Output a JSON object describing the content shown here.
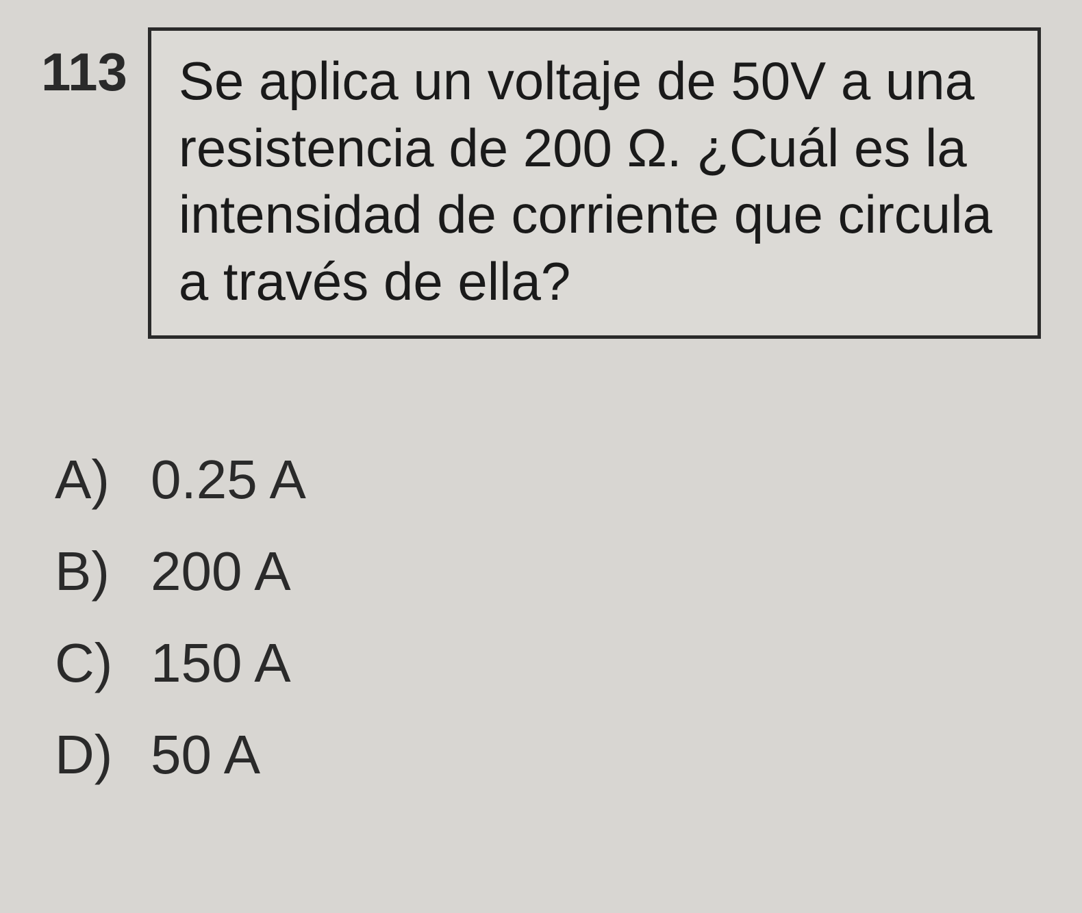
{
  "question": {
    "number": "113",
    "text": "Se aplica un voltaje de 50V a una resistencia de 200 Ω. ¿Cuál es la intensidad de corriente que circula a través de ella?"
  },
  "options": [
    {
      "label": "A)",
      "value": "0.25 A"
    },
    {
      "label": "B)",
      "value": "200 A"
    },
    {
      "label": "C)",
      "value": "150 A"
    },
    {
      "label": "D)",
      "value": "50 A"
    }
  ],
  "styling": {
    "background_color": "#d8d6d2",
    "box_background": "#dcdad6",
    "border_color": "#2a2a2a",
    "text_color": "#1a1a1a",
    "question_fontsize": 78,
    "option_fontsize": 80,
    "border_width": 5
  }
}
